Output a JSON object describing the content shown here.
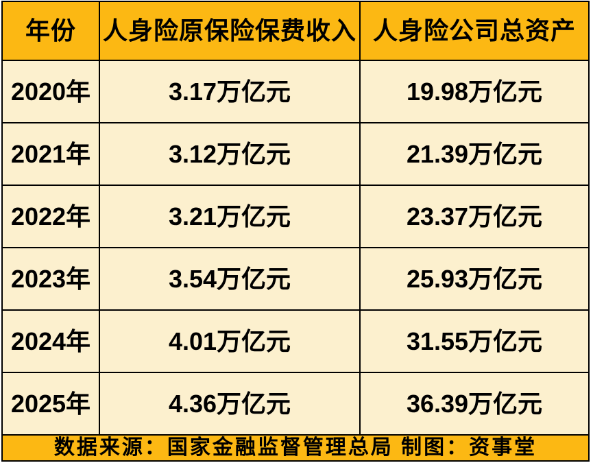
{
  "colors": {
    "header_bg": "#FCB813",
    "footer_bg": "#FCB813",
    "row_bg": "#FCF0CE",
    "border": "#000000",
    "text": "#000000",
    "page_bg": "#FFFFFF"
  },
  "table": {
    "columns": {
      "year": "年份",
      "premium_income": "人身险原保险保费收入",
      "total_assets": "人身险公司总资产"
    },
    "rows": [
      {
        "year": "2020年",
        "premium_income": "3.17万亿元",
        "total_assets": "19.98万亿元"
      },
      {
        "year": "2021年",
        "premium_income": "3.12万亿元",
        "total_assets": "21.39万亿元"
      },
      {
        "year": "2022年",
        "premium_income": "3.21万亿元",
        "total_assets": "23.37万亿元"
      },
      {
        "year": "2023年",
        "premium_income": "3.54万亿元",
        "total_assets": "25.93万亿元"
      },
      {
        "year": "2024年",
        "premium_income": "4.01万亿元",
        "total_assets": "31.55万亿元"
      },
      {
        "year": "2025年",
        "premium_income": "4.36万亿元",
        "total_assets": "36.39万亿元"
      }
    ],
    "footer": "数据来源：国家金融监督管理总局 制图：资事堂"
  },
  "chart_data": {
    "type": "table",
    "columns": [
      "年份",
      "人身险原保险保费收入",
      "人身险公司总资产"
    ],
    "rows": [
      [
        "2020年",
        "3.17万亿元",
        "19.98万亿元"
      ],
      [
        "2021年",
        "3.12万亿元",
        "21.39万亿元"
      ],
      [
        "2022年",
        "3.21万亿元",
        "23.37万亿元"
      ],
      [
        "2023年",
        "3.54万亿元",
        "25.93万亿元"
      ],
      [
        "2024年",
        "4.01万亿元",
        "31.55万亿元"
      ],
      [
        "2025年",
        "4.36万亿元",
        "36.39万亿元"
      ]
    ],
    "years": [
      "2020",
      "2021",
      "2022",
      "2023",
      "2024",
      "2025"
    ],
    "premium_income_trillion_yuan": [
      3.17,
      3.12,
      3.21,
      3.54,
      4.01,
      4.36
    ],
    "total_assets_trillion_yuan": [
      19.98,
      21.39,
      23.37,
      25.93,
      31.55,
      36.39
    ],
    "unit": "万亿元",
    "source_note": "数据来源：国家金融监督管理总局 制图：资事堂"
  }
}
